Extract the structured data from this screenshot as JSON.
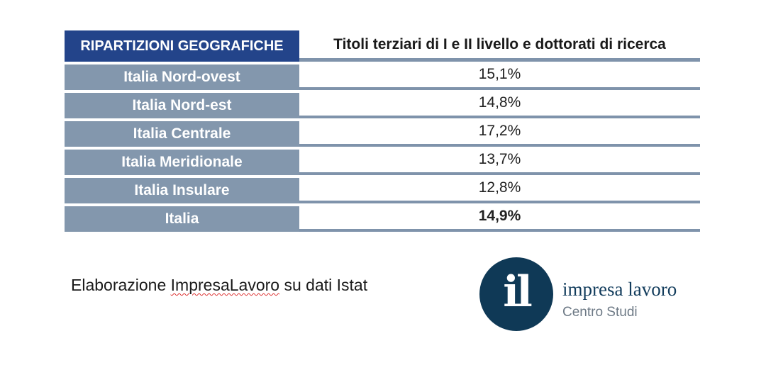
{
  "table": {
    "header_left": "RIPARTIZIONI GEOGRAFICHE",
    "header_right": "Titoli terziari di I e II livello e dottorati di ricerca",
    "rows": [
      {
        "region": "Italia Nord-ovest",
        "value": "15,1%"
      },
      {
        "region": "Italia Nord-est",
        "value": "14,8%"
      },
      {
        "region": "Italia Centrale",
        "value": "17,2%"
      },
      {
        "region": "Italia Meridionale",
        "value": "13,7%"
      },
      {
        "region": "Italia Insulare",
        "value": "12,8%"
      },
      {
        "region": "Italia",
        "value": "14,9%"
      }
    ]
  },
  "source": {
    "prefix": "Elaborazione ",
    "brand": "ImpresaLavoro",
    "suffix": " su dati Istat"
  },
  "logo": {
    "mark": "il",
    "name": "impresa lavoro",
    "subtitle": "Centro Studi"
  },
  "colors": {
    "header_bg": "#23448a",
    "row_label_bg": "#8397ad",
    "logo_circle": "#0f3956"
  },
  "chart_data": {
    "type": "table",
    "columns": [
      "RIPARTIZIONI GEOGRAFICHE",
      "Titoli terziari di I e II livello e dottorati di ricerca"
    ],
    "categories": [
      "Italia Nord-ovest",
      "Italia Nord-est",
      "Italia Centrale",
      "Italia Meridionale",
      "Italia Insulare",
      "Italia"
    ],
    "values": [
      15.1,
      14.8,
      17.2,
      13.7,
      12.8,
      14.9
    ],
    "unit": "%"
  }
}
